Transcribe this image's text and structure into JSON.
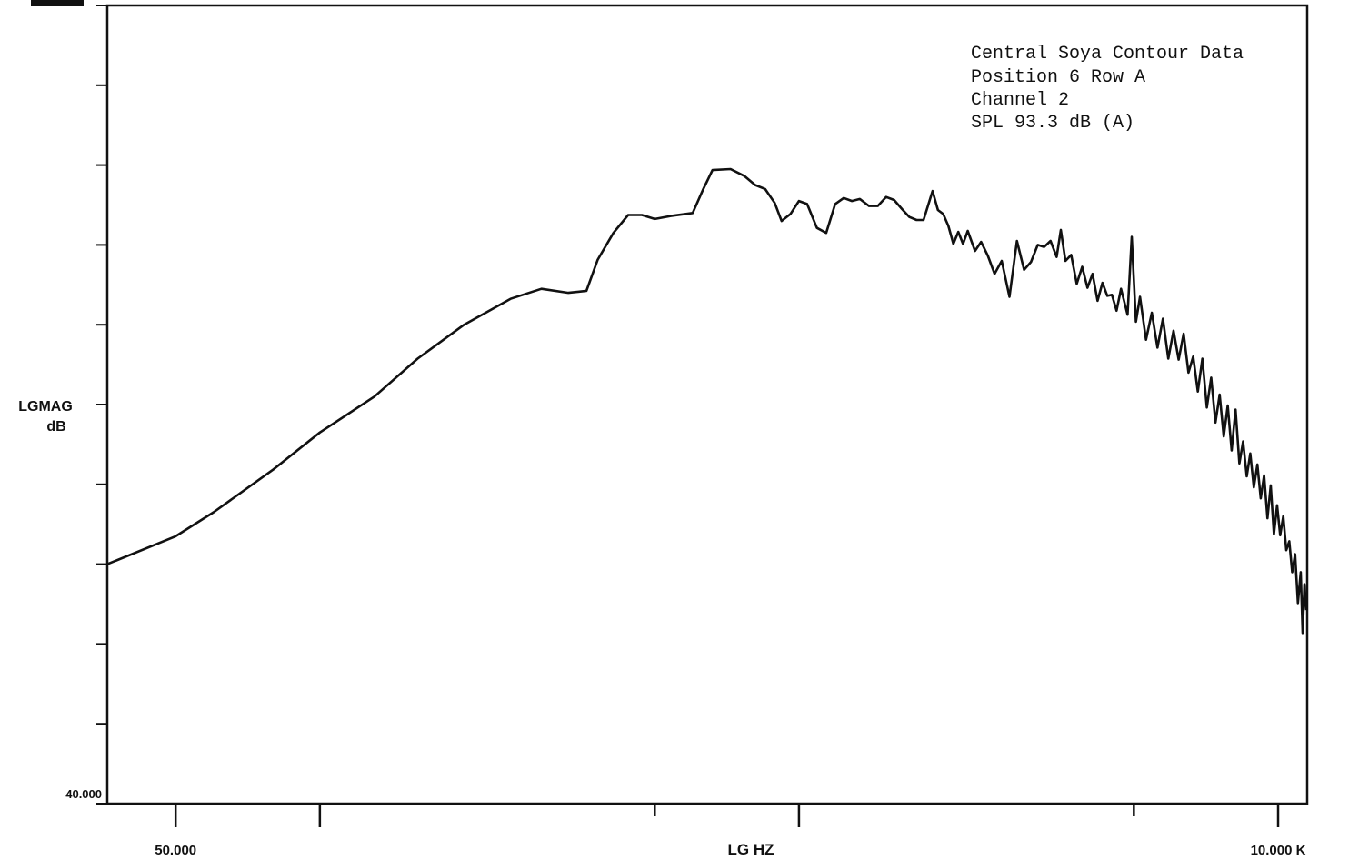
{
  "chart_data": {
    "type": "line",
    "x_scale": "log",
    "xlim": [
      36,
      11500
    ],
    "ylim": [
      40,
      120
    ],
    "xlabel": "LG HZ",
    "ylabel_lines": [
      "LGMAG",
      "dB"
    ],
    "y_top_label": "",
    "y_bottom_label": "40.000",
    "x_tick_labels": [
      {
        "value": 50,
        "text": "50.000"
      },
      {
        "value": 10000,
        "text": "10.000 K"
      }
    ],
    "x_major_ticks": [
      50,
      100,
      1000,
      10000
    ],
    "x_minor_ticks": [
      500,
      5000
    ],
    "y_ticks": [
      40,
      48,
      56,
      64,
      72,
      80,
      88,
      96,
      104,
      112,
      120
    ],
    "annotation": [
      "Central Soya Contour Data",
      "Position 6 Row A",
      "Channel 2",
      "SPL 93.3 dB  (A)"
    ],
    "color": "#111111",
    "series": [
      {
        "points": [
          [
            36,
            64.0
          ],
          [
            50,
            66.8
          ],
          [
            60,
            69.2
          ],
          [
            80,
            73.5
          ],
          [
            100,
            77.2
          ],
          [
            130,
            80.8
          ],
          [
            160,
            84.6
          ],
          [
            200,
            88.0
          ],
          [
            250,
            90.6
          ],
          [
            290,
            91.6
          ],
          [
            330,
            91.2
          ],
          [
            360,
            91.4
          ],
          [
            380,
            94.5
          ],
          [
            410,
            97.2
          ],
          [
            440,
            99.0
          ],
          [
            470,
            99.0
          ],
          [
            500,
            98.6
          ],
          [
            540,
            98.9
          ],
          [
            600,
            99.2
          ],
          [
            630,
            101.5
          ],
          [
            660,
            103.5
          ],
          [
            720,
            103.6
          ],
          [
            770,
            102.9
          ],
          [
            810,
            102.0
          ],
          [
            850,
            101.6
          ],
          [
            890,
            100.2
          ],
          [
            920,
            98.4
          ],
          [
            960,
            99.1
          ],
          [
            1000,
            100.4
          ],
          [
            1040,
            100.1
          ],
          [
            1090,
            97.7
          ],
          [
            1140,
            97.2
          ],
          [
            1190,
            100.1
          ],
          [
            1240,
            100.7
          ],
          [
            1290,
            100.4
          ],
          [
            1340,
            100.6
          ],
          [
            1400,
            99.9
          ],
          [
            1460,
            99.9
          ],
          [
            1520,
            100.8
          ],
          [
            1580,
            100.5
          ],
          [
            1640,
            99.6
          ],
          [
            1700,
            98.8
          ],
          [
            1760,
            98.5
          ],
          [
            1820,
            98.5
          ],
          [
            1900,
            101.4
          ],
          [
            1950,
            99.5
          ],
          [
            2000,
            99.1
          ],
          [
            2050,
            97.9
          ],
          [
            2100,
            96.1
          ],
          [
            2150,
            97.3
          ],
          [
            2200,
            96.1
          ],
          [
            2250,
            97.4
          ],
          [
            2330,
            95.4
          ],
          [
            2400,
            96.3
          ],
          [
            2480,
            94.9
          ],
          [
            2560,
            93.1
          ],
          [
            2650,
            94.4
          ],
          [
            2750,
            90.8
          ],
          [
            2850,
            96.4
          ],
          [
            2950,
            93.5
          ],
          [
            3050,
            94.3
          ],
          [
            3150,
            96.0
          ],
          [
            3250,
            95.8
          ],
          [
            3350,
            96.4
          ],
          [
            3450,
            94.8
          ],
          [
            3520,
            97.5
          ],
          [
            3600,
            94.4
          ],
          [
            3700,
            95.0
          ],
          [
            3800,
            92.1
          ],
          [
            3900,
            93.8
          ],
          [
            4000,
            91.7
          ],
          [
            4100,
            93.1
          ],
          [
            4200,
            90.4
          ],
          [
            4300,
            92.2
          ],
          [
            4400,
            90.9
          ],
          [
            4500,
            91.0
          ],
          [
            4600,
            89.4
          ],
          [
            4700,
            91.6
          ],
          [
            4850,
            89.0
          ],
          [
            4950,
            96.8
          ],
          [
            5050,
            88.3
          ],
          [
            5150,
            90.8
          ],
          [
            5300,
            86.5
          ],
          [
            5450,
            89.2
          ],
          [
            5600,
            85.7
          ],
          [
            5750,
            88.6
          ],
          [
            5900,
            84.6
          ],
          [
            6050,
            87.4
          ],
          [
            6200,
            84.5
          ],
          [
            6350,
            87.1
          ],
          [
            6500,
            83.2
          ],
          [
            6650,
            84.8
          ],
          [
            6800,
            81.3
          ],
          [
            6950,
            84.6
          ],
          [
            7100,
            79.7
          ],
          [
            7250,
            82.7
          ],
          [
            7400,
            78.2
          ],
          [
            7550,
            81.0
          ],
          [
            7700,
            76.8
          ],
          [
            7850,
            79.9
          ],
          [
            8000,
            75.4
          ],
          [
            8150,
            79.5
          ],
          [
            8300,
            74.1
          ],
          [
            8450,
            76.3
          ],
          [
            8600,
            72.8
          ],
          [
            8750,
            75.1
          ],
          [
            8900,
            71.7
          ],
          [
            9050,
            74.0
          ],
          [
            9200,
            70.6
          ],
          [
            9350,
            72.9
          ],
          [
            9500,
            68.6
          ],
          [
            9650,
            71.9
          ],
          [
            9800,
            67.0
          ],
          [
            9950,
            69.9
          ],
          [
            10100,
            66.9
          ],
          [
            10250,
            68.8
          ],
          [
            10400,
            65.4
          ],
          [
            10550,
            66.3
          ],
          [
            10700,
            63.2
          ],
          [
            10850,
            65.0
          ],
          [
            11000,
            60.1
          ],
          [
            11150,
            63.2
          ],
          [
            11250,
            57.1
          ],
          [
            11350,
            62.0
          ],
          [
            11450,
            59.4
          ]
        ]
      }
    ]
  }
}
